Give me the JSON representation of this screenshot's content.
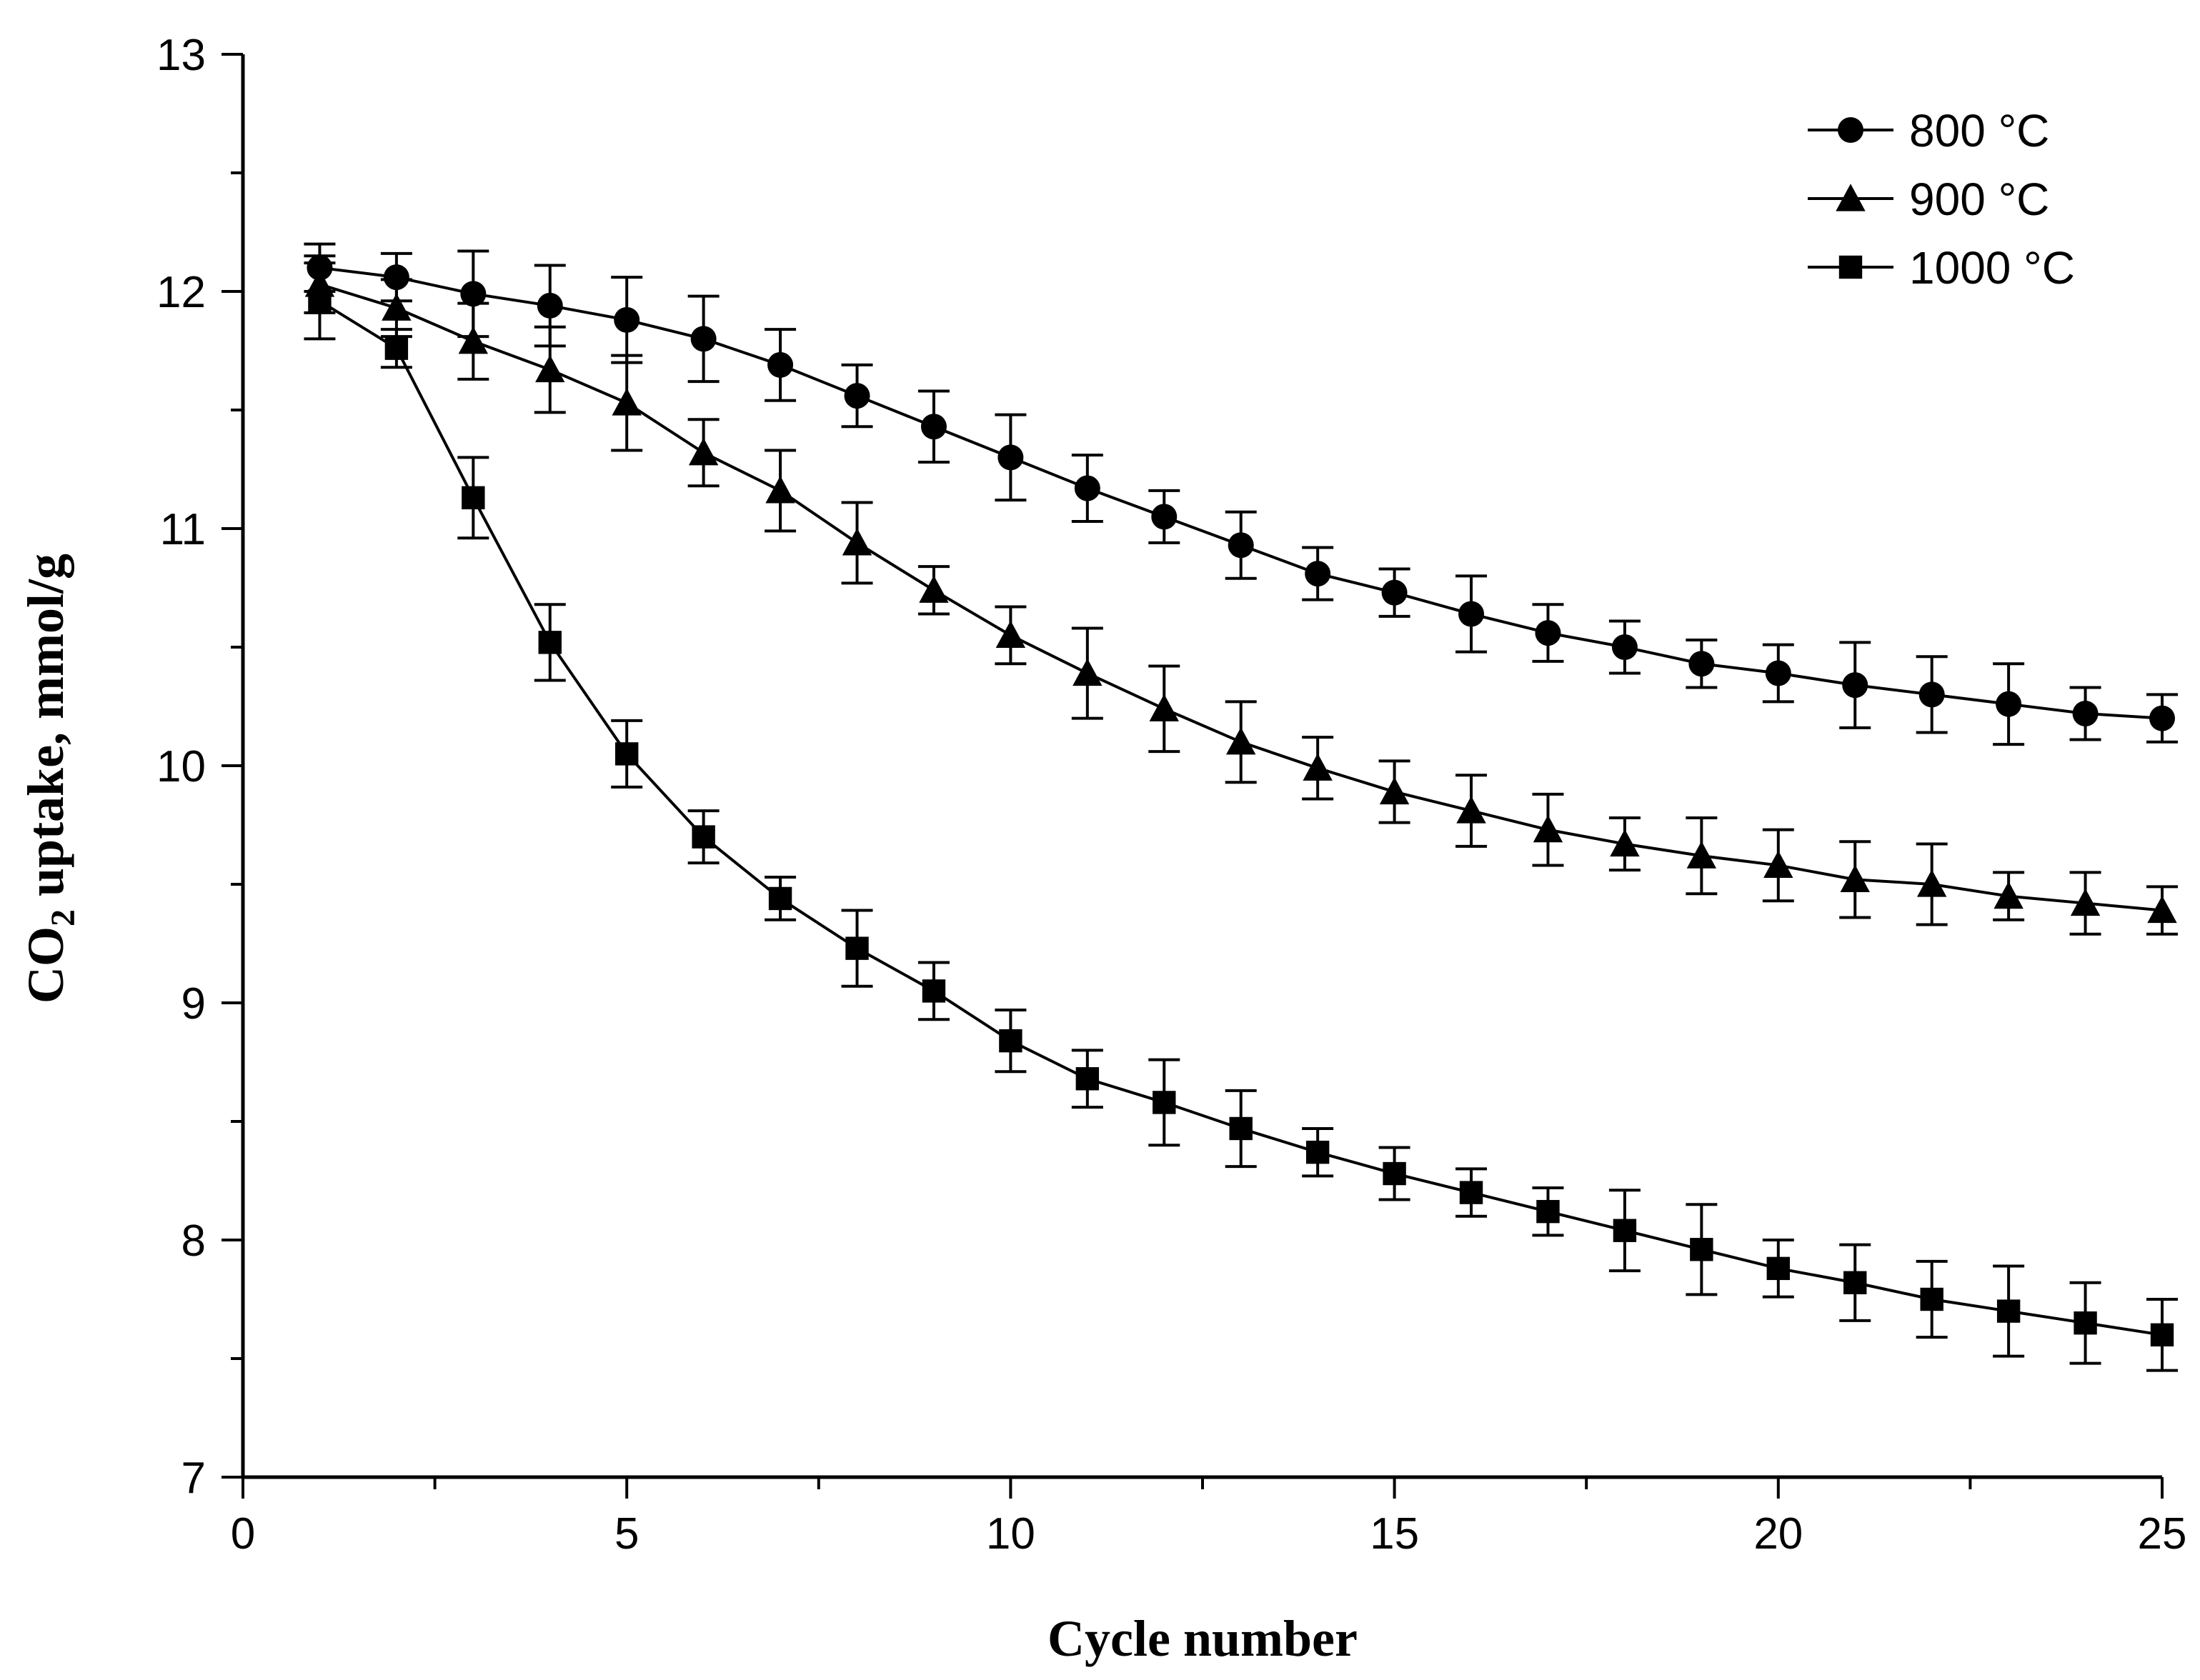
{
  "chart_data": {
    "type": "line",
    "title": "",
    "xlabel": "Cycle number",
    "ylabel": {
      "prefix": "CO",
      "subscript": "2",
      "suffix": " uptake, mmol/g"
    },
    "xlim": [
      0,
      25
    ],
    "ylim": [
      7,
      13
    ],
    "xticks": [
      0,
      5,
      10,
      15,
      20,
      25
    ],
    "yticks": [
      7,
      8,
      9,
      10,
      11,
      12,
      13
    ],
    "xtick_labels": [
      "0",
      "5",
      "10",
      "15",
      "20",
      "25"
    ],
    "ytick_labels": [
      "7",
      "8",
      "9",
      "10",
      "11",
      "12",
      "13"
    ],
    "x_minor_step": 2.5,
    "y_minor_step": 0.5,
    "grid": false,
    "legend_position": "top-right",
    "x": [
      1,
      2,
      3,
      4,
      5,
      6,
      7,
      8,
      9,
      10,
      11,
      12,
      13,
      14,
      15,
      16,
      17,
      18,
      19,
      20,
      21,
      22,
      23,
      24,
      25
    ],
    "series": [
      {
        "name": "800 °C",
        "marker": "circle",
        "color": "#000000",
        "values": [
          12.1,
          12.06,
          11.99,
          11.94,
          11.88,
          11.8,
          11.69,
          11.56,
          11.43,
          11.3,
          11.17,
          11.05,
          10.93,
          10.81,
          10.73,
          10.64,
          10.56,
          10.5,
          10.43,
          10.39,
          10.34,
          10.3,
          10.26,
          10.22,
          10.2
        ],
        "errors": [
          0.1,
          0.1,
          0.18,
          0.17,
          0.18,
          0.18,
          0.15,
          0.13,
          0.15,
          0.18,
          0.14,
          0.11,
          0.14,
          0.11,
          0.1,
          0.16,
          0.12,
          0.11,
          0.1,
          0.12,
          0.18,
          0.16,
          0.17,
          0.11,
          0.1
        ]
      },
      {
        "name": "900 °C",
        "marker": "triangle",
        "color": "#000000",
        "values": [
          12.03,
          11.93,
          11.79,
          11.67,
          11.53,
          11.32,
          11.16,
          10.94,
          10.74,
          10.55,
          10.39,
          10.24,
          10.1,
          9.99,
          9.89,
          9.81,
          9.73,
          9.67,
          9.62,
          9.58,
          9.52,
          9.5,
          9.45,
          9.42,
          9.39
        ],
        "errors": [
          0.12,
          0.12,
          0.16,
          0.18,
          0.2,
          0.14,
          0.17,
          0.17,
          0.1,
          0.12,
          0.19,
          0.18,
          0.17,
          0.13,
          0.13,
          0.15,
          0.15,
          0.11,
          0.16,
          0.15,
          0.16,
          0.17,
          0.1,
          0.13,
          0.1
        ]
      },
      {
        "name": "1000 °C",
        "marker": "square",
        "color": "#000000",
        "values": [
          11.96,
          11.76,
          11.13,
          10.52,
          10.05,
          9.7,
          9.44,
          9.23,
          9.05,
          8.84,
          8.68,
          8.58,
          8.47,
          8.37,
          8.28,
          8.2,
          8.12,
          8.04,
          7.96,
          7.88,
          7.82,
          7.75,
          7.7,
          7.65,
          7.6
        ],
        "errors": [
          0.16,
          0.08,
          0.17,
          0.16,
          0.14,
          0.11,
          0.09,
          0.16,
          0.12,
          0.13,
          0.12,
          0.18,
          0.16,
          0.1,
          0.11,
          0.1,
          0.1,
          0.17,
          0.19,
          0.12,
          0.16,
          0.16,
          0.19,
          0.17,
          0.15
        ]
      }
    ]
  }
}
